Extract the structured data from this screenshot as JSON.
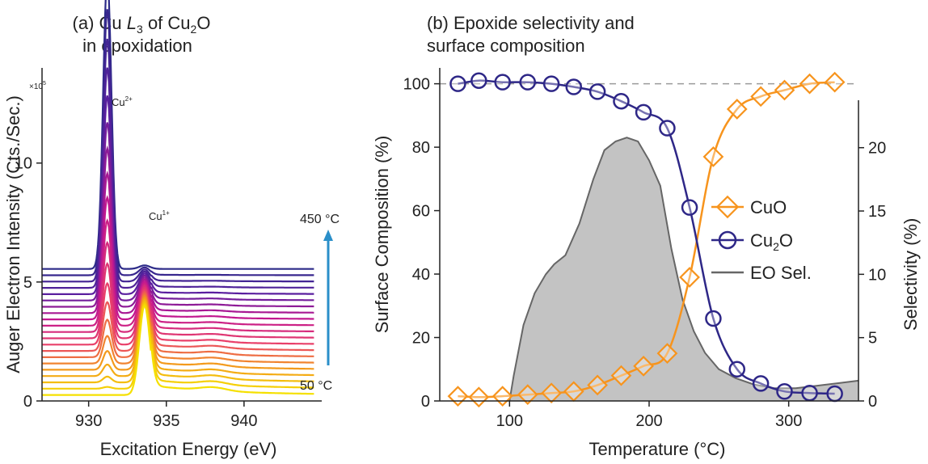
{
  "panel_a": {
    "title_line1_pre": "(a) Cu ",
    "title_line1_L": "L",
    "title_line1_L_sub": "3",
    "title_line1_mid": " of Cu",
    "title_line1_sub2": "2",
    "title_line1_end": "O",
    "title_line2": "in epoxidation",
    "annotations": {
      "cu2": "Cu",
      "cu2_sup": "2+",
      "cu1": "Cu",
      "cu1_sup": "1+",
      "temp_high": "450 °C",
      "temp_low": "50 °C",
      "multiplier": "×10",
      "multiplier_exp": "5"
    },
    "arrow_color": "#2a8fc9",
    "chart_data": {
      "type": "line",
      "xlabel": "Excitation Energy (eV)",
      "ylabel": "Auger Electron Intensity (Cts./Sec.)",
      "xlim": [
        927,
        945
      ],
      "ylim": [
        0,
        14
      ],
      "xticks": [
        930,
        935,
        940
      ],
      "yticks": [
        0,
        5,
        10
      ],
      "series_count": 21,
      "temperature_range_C": [
        50,
        450
      ],
      "colormap": [
        "#f5e000",
        "#f39a1c",
        "#e9406a",
        "#c2178f",
        "#5a1f9f",
        "#2c2a88"
      ],
      "peaks": [
        {
          "position_eV": 931.2,
          "label": "Cu2+"
        },
        {
          "position_eV": 933.6,
          "label": "Cu1+"
        }
      ],
      "series_params": {
        "baseline_start": 0.25,
        "baseline_step": 0.265,
        "cu2_peak_max": 12.2,
        "cu1_peak_max": 3.6,
        "tail_level": 0.4
      }
    }
  },
  "panel_b": {
    "title_line1": "(b) Epoxide selectivity and",
    "title_line2": "surface composition",
    "legend": {
      "cuo": "CuO",
      "cu2o_pre": "Cu",
      "cu2o_sub": "2",
      "cu2o_end": "O",
      "eo": "EO Sel."
    },
    "colors": {
      "cuo": "#f7941d",
      "cu2o": "#2e2787",
      "eo_fill": "#c3c3c3",
      "eo_line": "#666666"
    },
    "chart_data": {
      "type": "line",
      "xlabel": "Temperature (°C)",
      "ylabel": "Surface Composition (%)",
      "y2label": "Selectivity (%)",
      "xlim": [
        50,
        350
      ],
      "ylim": [
        0,
        105
      ],
      "y2lim": [
        0,
        26.3
      ],
      "xticks": [
        100,
        200,
        300
      ],
      "yticks": [
        0,
        20,
        40,
        60,
        80,
        100
      ],
      "y2ticks": [
        0,
        5,
        10,
        15,
        20
      ],
      "reference_line_y": 100,
      "series": [
        {
          "name": "CuO",
          "axis": "left",
          "x": [
            63,
            78,
            95,
            113,
            130,
            146,
            163,
            180,
            196,
            213,
            229,
            246,
            263,
            280,
            297,
            315,
            333
          ],
          "y": [
            1.5,
            1.2,
            1.5,
            2,
            2.5,
            3,
            5,
            8,
            11,
            15,
            39,
            77,
            92,
            96,
            98,
            100,
            100.5
          ]
        },
        {
          "name": "Cu2O",
          "axis": "left",
          "x": [
            63,
            78,
            95,
            113,
            130,
            146,
            163,
            180,
            196,
            213,
            229,
            246,
            263,
            280,
            297,
            315,
            333
          ],
          "y": [
            100,
            101,
            100.5,
            100.5,
            100,
            99,
            97.5,
            94.5,
            91,
            86,
            61,
            26,
            10,
            5.5,
            3,
            2.5,
            2.3
          ]
        },
        {
          "name": "EO Sel.",
          "axis": "right",
          "x": [
            100,
            103,
            110,
            118,
            126,
            132,
            140,
            150,
            160,
            168,
            176,
            184,
            192,
            200,
            208,
            216,
            224,
            232,
            240,
            250,
            262,
            275,
            290,
            305,
            320,
            335,
            350
          ],
          "y": [
            0,
            2,
            6,
            8.5,
            10,
            10.8,
            11.5,
            14,
            17.5,
            19.8,
            20.5,
            20.8,
            20.5,
            19,
            17,
            12,
            8,
            5.5,
            3.8,
            2.5,
            1.8,
            1.3,
            1,
            1,
            1.2,
            1.4,
            1.6
          ]
        }
      ]
    }
  }
}
